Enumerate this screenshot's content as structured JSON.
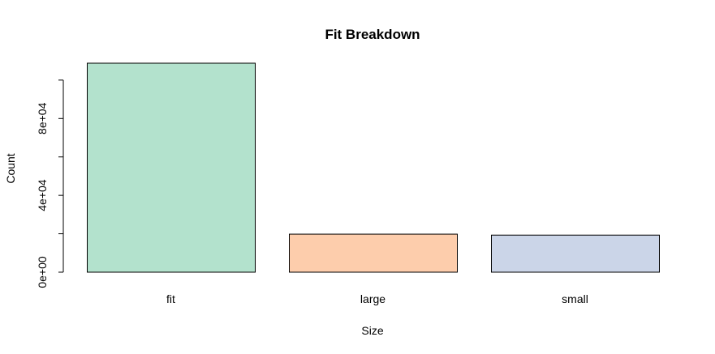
{
  "chart_data": {
    "type": "bar",
    "title": "Fit Breakdown",
    "xlabel": "Size",
    "ylabel": "Count",
    "categories": [
      "fit",
      "large",
      "small"
    ],
    "values": [
      108800,
      19800,
      19300
    ],
    "colors": [
      "#B3E2CD",
      "#FDCDAC",
      "#CBD5E8"
    ],
    "bar_border_color": "#000000",
    "ylim": [
      0,
      108800
    ],
    "yticks": [
      0,
      20000,
      40000,
      60000,
      80000,
      100000
    ],
    "ytick_labels": [
      {
        "value": 0,
        "label": "0e+00"
      },
      {
        "value": 40000,
        "label": "4e+04"
      },
      {
        "value": 80000,
        "label": "8e+04"
      }
    ],
    "grid": false,
    "legend": "none"
  }
}
